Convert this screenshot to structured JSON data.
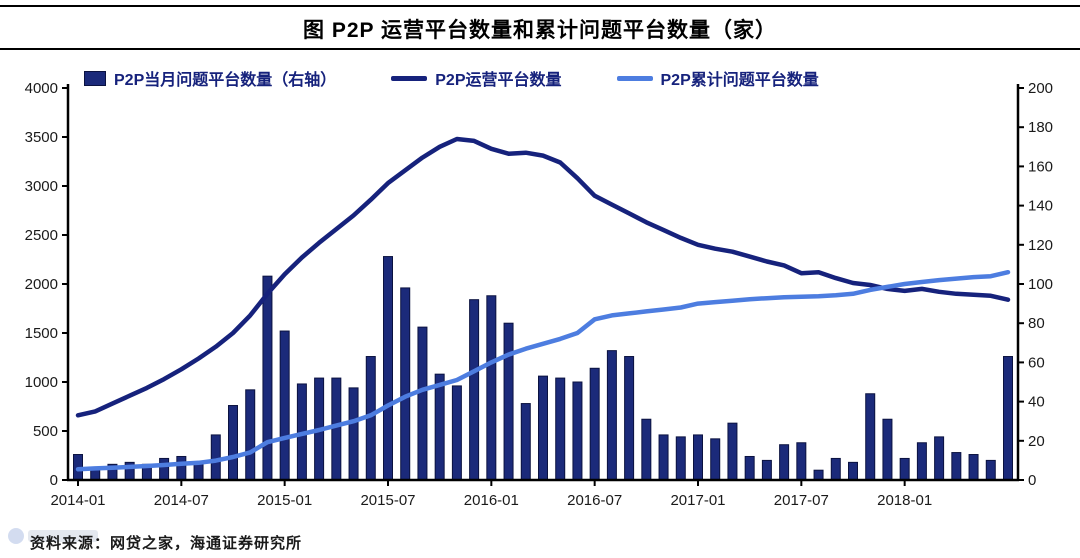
{
  "page": {
    "title": "图 P2P 运营平台数量和累计问题平台数量（家）",
    "source_note": "资料来源：网贷之家，海通证券研究所"
  },
  "legend": {
    "bar_label": "P2P当月问题平台数量（右轴）",
    "operating_label": "P2P运营平台数量",
    "cumulative_label": "P2P累计问题平台数量"
  },
  "colors": {
    "bar_fill": "#1b2a7a",
    "bar_stroke": "#0b1240",
    "operating_line": "#16227c",
    "cumulative_line": "#4d7de0",
    "axis": "#000000",
    "tick_text": "#1a1a1a",
    "legend_text": "#16227c"
  },
  "chart_data": {
    "type": "bar",
    "subtype": "combo bar+line, dual axis",
    "title": "图 P2P 运营平台数量和累计问题平台数量（家）",
    "xlabel": "",
    "ylabel_left": "",
    "ylabel_right": "",
    "left_axis": {
      "min": 0,
      "max": 4000,
      "step": 500
    },
    "right_axis": {
      "min": 0,
      "max": 200,
      "step": 20
    },
    "x_tick_every": 6,
    "x_tick_labels": [
      "2014-01",
      "2014-07",
      "2015-01",
      "2015-07",
      "2016-01",
      "2016-07",
      "2017-01",
      "2017-07",
      "2018-01"
    ],
    "legend_position": "top",
    "grid": false,
    "categories": [
      "2014-01",
      "2014-02",
      "2014-03",
      "2014-04",
      "2014-05",
      "2014-06",
      "2014-07",
      "2014-08",
      "2014-09",
      "2014-10",
      "2014-11",
      "2014-12",
      "2015-01",
      "2015-02",
      "2015-03",
      "2015-04",
      "2015-05",
      "2015-06",
      "2015-07",
      "2015-08",
      "2015-09",
      "2015-10",
      "2015-11",
      "2015-12",
      "2016-01",
      "2016-02",
      "2016-03",
      "2016-04",
      "2016-05",
      "2016-06",
      "2016-07",
      "2016-08",
      "2016-09",
      "2016-10",
      "2016-11",
      "2016-12",
      "2017-01",
      "2017-02",
      "2017-03",
      "2017-04",
      "2017-05",
      "2017-06",
      "2017-07",
      "2017-08",
      "2017-09",
      "2017-10",
      "2017-11",
      "2017-12",
      "2018-01",
      "2018-02",
      "2018-03",
      "2018-04",
      "2018-05",
      "2018-06",
      "2018-07"
    ],
    "series": [
      {
        "name": "P2P当月问题平台数量（右轴）",
        "type": "bar",
        "axis": "right",
        "values": [
          13,
          6,
          8,
          9,
          8,
          11,
          12,
          9,
          23,
          38,
          46,
          104,
          76,
          49,
          52,
          52,
          47,
          63,
          114,
          98,
          78,
          54,
          48,
          92,
          94,
          80,
          39,
          53,
          52,
          50,
          57,
          66,
          63,
          31,
          23,
          22,
          23,
          21,
          29,
          12,
          10,
          18,
          19,
          5,
          11,
          9,
          44,
          31,
          11,
          19,
          22,
          14,
          13,
          10,
          63
        ]
      },
      {
        "name": "P2P运营平台数量",
        "type": "line",
        "axis": "left",
        "values": [
          660,
          700,
          780,
          860,
          940,
          1030,
          1130,
          1240,
          1360,
          1500,
          1680,
          1900,
          2100,
          2270,
          2420,
          2560,
          2700,
          2860,
          3030,
          3160,
          3290,
          3400,
          3480,
          3460,
          3380,
          3330,
          3340,
          3310,
          3240,
          3080,
          2900,
          2810,
          2720,
          2630,
          2550,
          2470,
          2400,
          2360,
          2330,
          2280,
          2230,
          2190,
          2110,
          2120,
          2060,
          2010,
          1990,
          1950,
          1930,
          1950,
          1920,
          1900,
          1890,
          1880,
          1840
        ]
      },
      {
        "name": "P2P累计问题平台数量",
        "type": "line",
        "axis": "left",
        "values": [
          110,
          118,
          126,
          134,
          143,
          153,
          165,
          176,
          198,
          235,
          282,
          386,
          430,
          470,
          510,
          555,
          600,
          660,
          760,
          850,
          920,
          970,
          1020,
          1110,
          1200,
          1280,
          1340,
          1390,
          1440,
          1500,
          1640,
          1680,
          1700,
          1720,
          1740,
          1760,
          1800,
          1815,
          1830,
          1845,
          1855,
          1865,
          1870,
          1875,
          1885,
          1900,
          1940,
          1970,
          2000,
          2020,
          2040,
          2055,
          2070,
          2080,
          2120
        ]
      }
    ]
  }
}
